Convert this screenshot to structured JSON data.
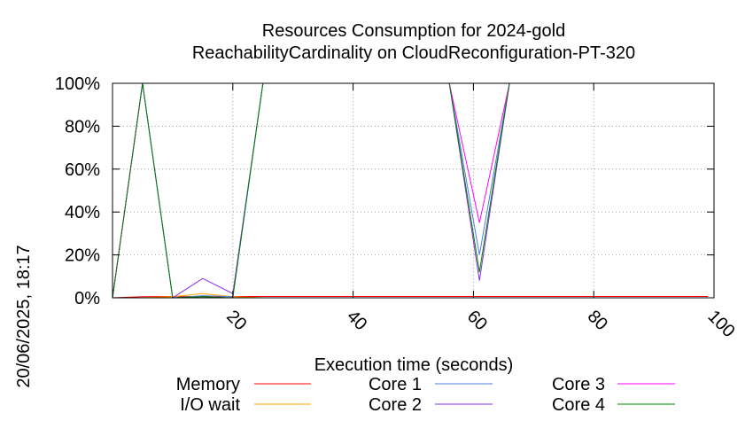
{
  "chart_data": {
    "type": "line",
    "title": "Resources Consumption for 2024-gold",
    "subtitle": "ReachabilityCardinality on CloudReconfiguration-PT-320",
    "xlabel": "Execution time (seconds)",
    "ylabel": "",
    "side_label": "20/06/2025, 18:17",
    "xlim": [
      0,
      100
    ],
    "ylim": [
      0,
      100
    ],
    "x_ticks": [
      20,
      40,
      60,
      80,
      100
    ],
    "x_tick_labels": [
      "20",
      "40",
      "60",
      "80",
      "100"
    ],
    "y_ticks": [
      0,
      20,
      40,
      60,
      80,
      100
    ],
    "y_tick_labels": [
      "0%",
      "20%",
      "40%",
      "60%",
      "80%",
      "100%"
    ],
    "grid": true,
    "legend_position": "bottom",
    "series": [
      {
        "name": "Memory",
        "color": "#ff0000",
        "points": [
          [
            0,
            0
          ],
          [
            5,
            0.5
          ],
          [
            10,
            0.6
          ],
          [
            15,
            0.6
          ],
          [
            20,
            0.6
          ],
          [
            30,
            0.6
          ],
          [
            40,
            0.6
          ],
          [
            50,
            0.6
          ],
          [
            56,
            0.6
          ],
          [
            61,
            0.6
          ],
          [
            66,
            0.6
          ],
          [
            80,
            0.6
          ],
          [
            99,
            0.6
          ]
        ]
      },
      {
        "name": "I/O wait",
        "color": "#ffa500",
        "points": [
          [
            0,
            0
          ],
          [
            5,
            0
          ],
          [
            10,
            0.5
          ],
          [
            15,
            2
          ],
          [
            20,
            0.5
          ],
          [
            25,
            0
          ],
          [
            56,
            0
          ],
          [
            61,
            0
          ],
          [
            66,
            0
          ],
          [
            99,
            0
          ]
        ]
      },
      {
        "name": "Core 1",
        "color": "#4c7fd4",
        "points": [
          [
            0,
            0
          ],
          [
            5,
            100
          ],
          [
            10,
            0
          ],
          [
            15,
            1
          ],
          [
            20,
            0.5
          ],
          [
            25,
            100
          ],
          [
            56,
            100
          ],
          [
            61,
            20
          ],
          [
            66,
            100
          ],
          [
            99,
            100
          ]
        ]
      },
      {
        "name": "Core 2",
        "color": "#8a2be2",
        "points": [
          [
            0,
            0
          ],
          [
            5,
            100
          ],
          [
            10,
            0
          ],
          [
            15,
            9
          ],
          [
            20,
            2
          ],
          [
            25,
            100
          ],
          [
            56,
            100
          ],
          [
            61,
            8
          ],
          [
            66,
            100
          ],
          [
            99,
            100
          ]
        ]
      },
      {
        "name": "Core 3",
        "color": "#ff00ff",
        "points": [
          [
            0,
            0
          ],
          [
            5,
            100
          ],
          [
            10,
            100
          ],
          [
            15,
            100
          ],
          [
            20,
            100
          ],
          [
            25,
            100
          ],
          [
            56,
            100
          ],
          [
            61,
            35
          ],
          [
            66,
            100
          ],
          [
            99,
            100
          ]
        ]
      },
      {
        "name": "Core 4",
        "color": "#008000",
        "points": [
          [
            0,
            0
          ],
          [
            5,
            100
          ],
          [
            10,
            0
          ],
          [
            15,
            0.5
          ],
          [
            20,
            0
          ],
          [
            25,
            100
          ],
          [
            56,
            100
          ],
          [
            61,
            12
          ],
          [
            66,
            100
          ],
          [
            99,
            100
          ]
        ]
      }
    ]
  }
}
